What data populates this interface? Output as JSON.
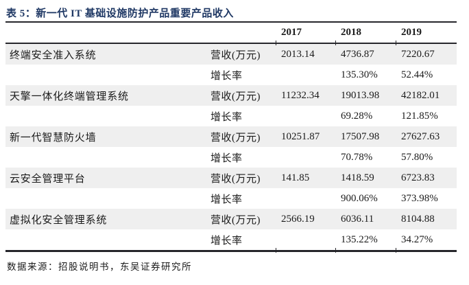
{
  "title": "表 5：新一代 IT 基础设施防护产品重要产品收入",
  "table": {
    "year_headers": [
      "2017",
      "2018",
      "2019"
    ],
    "revenue_label": "营收(万元)",
    "growth_label": "增长率",
    "products": [
      {
        "name": "终端安全准入系统",
        "revenue": [
          "2013.14",
          "4736.87",
          "7220.67"
        ],
        "growth": [
          "",
          "135.30%",
          "52.44%"
        ]
      },
      {
        "name": "天擎一体化终端管理系统",
        "revenue": [
          "11232.34",
          "19013.98",
          "42182.01"
        ],
        "growth": [
          "",
          "69.28%",
          "121.85%"
        ]
      },
      {
        "name": "新一代智慧防火墙",
        "revenue": [
          "10251.87",
          "17507.98",
          "27627.63"
        ],
        "growth": [
          "",
          "70.78%",
          "57.80%"
        ]
      },
      {
        "name": "云安全管理平台",
        "revenue": [
          "141.85",
          "1418.59",
          "6723.83"
        ],
        "growth": [
          "",
          "900.06%",
          "373.98%"
        ]
      },
      {
        "name": "虚拟化安全管理系统",
        "revenue": [
          "2566.19",
          "6036.11",
          "8104.88"
        ],
        "growth": [
          "",
          "135.22%",
          "34.27%"
        ]
      }
    ]
  },
  "footer": "数据来源：招股说明书，东吴证券研究所",
  "colors": {
    "title_navy": "#1f3864",
    "row_stripe": "#efefef",
    "rule_dark": "#26262b"
  }
}
